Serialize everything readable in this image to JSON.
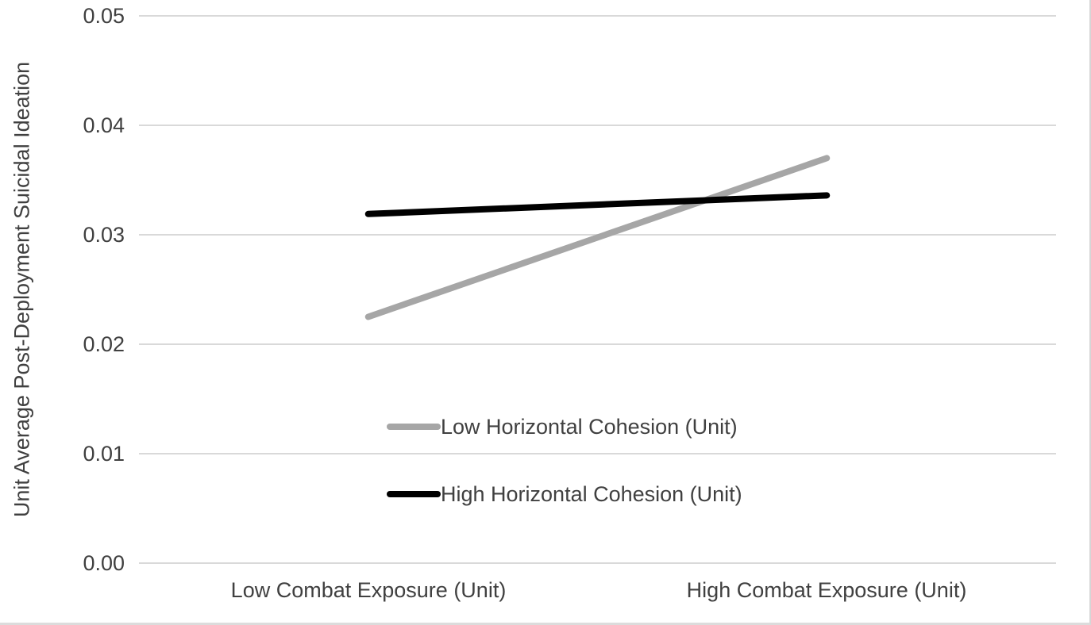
{
  "page": {
    "background": "#ffffff",
    "frame_border_color": "#d9d9d9"
  },
  "chart_data": {
    "type": "line",
    "title": "",
    "xlabel": "",
    "ylabel": "Unit Average Post-Deployment Suicidal Ideation",
    "categories": [
      "Low Combat Exposure (Unit)",
      "High Combat Exposure (Unit)"
    ],
    "series": [
      {
        "name": "Low Horizontal Cohesion (Unit)",
        "color": "#a6a6a6",
        "values": [
          0.0225,
          0.037
        ]
      },
      {
        "name": "High Horizontal Cohesion (Unit)",
        "color": "#000000",
        "values": [
          0.0319,
          0.0336
        ]
      }
    ],
    "ylim": [
      0,
      0.05
    ],
    "ytick_labels": [
      "0.05",
      "0.04",
      "0.03",
      "0.02",
      "0.01",
      "0.00"
    ],
    "ytick_values": [
      0.05,
      0.04,
      0.03,
      0.02,
      0.01,
      0.0
    ],
    "grid": true,
    "gridline_color": "#d9d9d9",
    "text_color": "#404040",
    "line_width": 8,
    "legend_position": "inside-lower-center"
  }
}
